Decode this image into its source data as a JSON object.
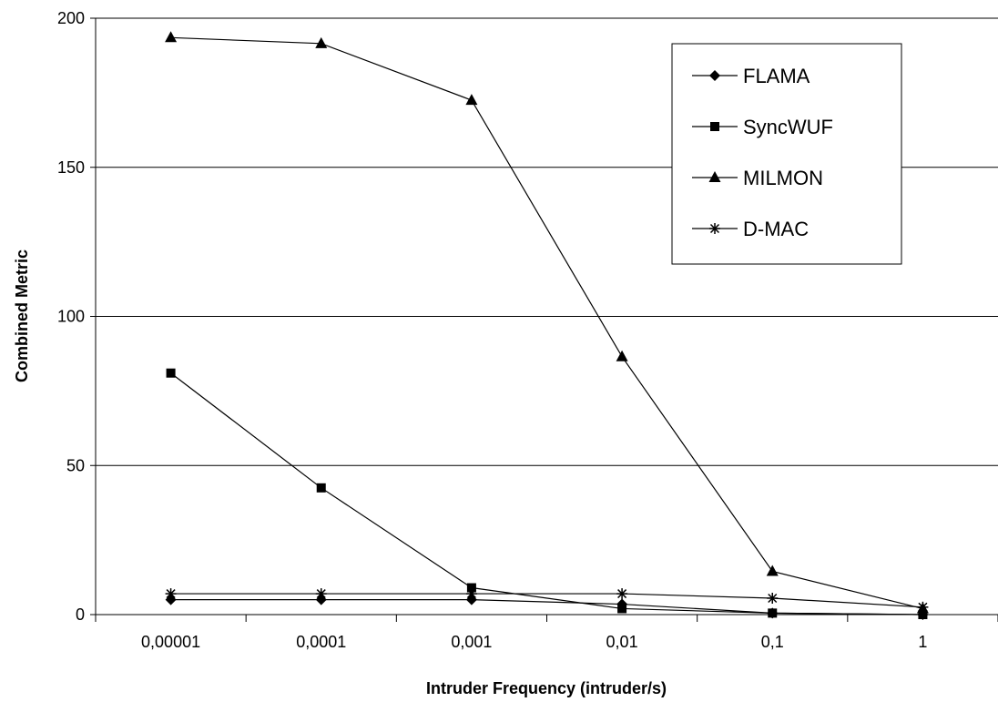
{
  "chart_data": {
    "type": "line",
    "title": "",
    "xlabel": "Intruder Frequency (intruder/s)",
    "ylabel": "Combined Metric",
    "categories": [
      "0,00001",
      "0,0001",
      "0,001",
      "0,01",
      "0,1",
      "1"
    ],
    "ylim": [
      0,
      200
    ],
    "yticks": [
      0,
      50,
      100,
      150,
      200
    ],
    "grid": "horizontal",
    "legend_position": "top-right",
    "series": [
      {
        "name": "FLAMA",
        "marker": "diamond",
        "values": [
          5,
          5,
          5,
          3.5,
          0.5,
          0
        ]
      },
      {
        "name": "SyncWUF",
        "marker": "square",
        "values": [
          81,
          42.5,
          9,
          2,
          0.5,
          0
        ]
      },
      {
        "name": "MILMON",
        "marker": "triangle",
        "values": [
          193.5,
          191.5,
          172.5,
          86.5,
          14.5,
          2
        ]
      },
      {
        "name": "D-MAC",
        "marker": "asterisk",
        "values": [
          7,
          7,
          7,
          7,
          5.5,
          2.5
        ]
      }
    ]
  }
}
